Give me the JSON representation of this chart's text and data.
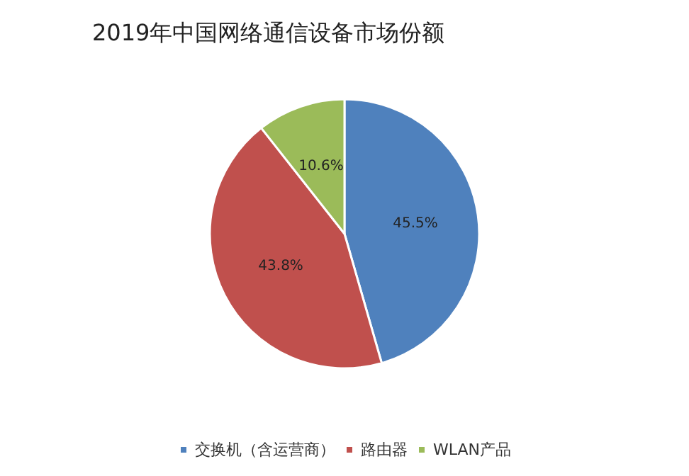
{
  "chart_data": {
    "type": "pie",
    "title": "2019年中国网络通信设备市场份额",
    "categories": [
      "交换机（含运营商）",
      "路由器",
      "WLAN产品"
    ],
    "values": [
      45.5,
      43.8,
      10.6
    ],
    "colors": [
      "#4f81bd",
      "#c0504d",
      "#9bbb59"
    ],
    "value_labels": [
      "45.5%",
      "43.8%",
      "10.6%"
    ],
    "legend": "bottom"
  }
}
